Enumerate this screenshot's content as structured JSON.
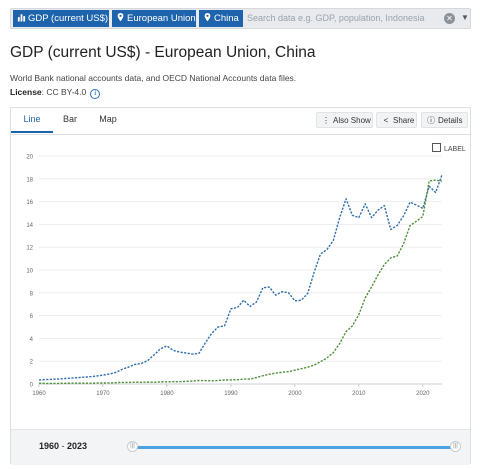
{
  "search": {
    "chips": [
      "GDP (current US$)",
      "European Union",
      "China"
    ],
    "placeholder": "Search data e.g. GDP, population, Indonesia"
  },
  "page": {
    "title": "GDP (current US$) - European Union, China",
    "source": "World Bank national accounts data, and OECD National Accounts data files.",
    "license_label": "License",
    "license_value": ": CC BY-4.0"
  },
  "tabs": [
    "Line",
    "Bar",
    "Map"
  ],
  "toolbar": {
    "also_show": "Also Show",
    "share": "Share",
    "details": "Details"
  },
  "label_toggle": "LABEL",
  "range": {
    "start": "1960",
    "end": "2023",
    "sep": " - "
  },
  "colors": {
    "eu": "#2f6ea8",
    "china": "#4e8f3a",
    "accent": "#1d64ad"
  },
  "chart_data": {
    "type": "line",
    "x": [
      1960,
      1961,
      1962,
      1963,
      1964,
      1965,
      1966,
      1967,
      1968,
      1969,
      1970,
      1971,
      1972,
      1973,
      1974,
      1975,
      1976,
      1977,
      1978,
      1979,
      1980,
      1981,
      1982,
      1983,
      1984,
      1985,
      1986,
      1987,
      1988,
      1989,
      1990,
      1991,
      1992,
      1993,
      1994,
      1995,
      1996,
      1997,
      1998,
      1999,
      2000,
      2001,
      2002,
      2003,
      2004,
      2005,
      2006,
      2007,
      2008,
      2009,
      2010,
      2011,
      2012,
      2013,
      2014,
      2015,
      2016,
      2017,
      2018,
      2019,
      2020,
      2021,
      2022,
      2023
    ],
    "series": [
      {
        "values": [
          0.36,
          0.39,
          0.41,
          0.44,
          0.48,
          0.52,
          0.56,
          0.6,
          0.64,
          0.7,
          0.78,
          0.87,
          1.02,
          1.3,
          1.48,
          1.72,
          1.8,
          2.05,
          2.55,
          3.1,
          3.33,
          2.95,
          2.8,
          2.72,
          2.62,
          2.68,
          3.6,
          4.45,
          5.0,
          5.1,
          6.6,
          6.7,
          7.35,
          6.8,
          7.2,
          8.45,
          8.5,
          7.8,
          8.1,
          8.0,
          7.3,
          7.35,
          7.95,
          9.8,
          11.4,
          11.8,
          12.6,
          14.6,
          16.25,
          14.8,
          14.6,
          15.8,
          14.6,
          15.25,
          15.65,
          13.55,
          13.9,
          14.75,
          15.95,
          15.7,
          15.4,
          17.35,
          16.8,
          18.35
        ]
      },
      {
        "values": [
          0.06,
          0.05,
          0.05,
          0.05,
          0.06,
          0.07,
          0.08,
          0.07,
          0.07,
          0.08,
          0.09,
          0.1,
          0.11,
          0.14,
          0.14,
          0.16,
          0.15,
          0.17,
          0.15,
          0.18,
          0.19,
          0.2,
          0.2,
          0.23,
          0.26,
          0.31,
          0.3,
          0.27,
          0.31,
          0.35,
          0.36,
          0.38,
          0.43,
          0.44,
          0.56,
          0.73,
          0.86,
          0.96,
          1.03,
          1.09,
          1.21,
          1.34,
          1.47,
          1.66,
          1.96,
          2.29,
          2.75,
          3.55,
          4.59,
          5.1,
          6.09,
          7.55,
          8.53,
          9.57,
          10.48,
          11.06,
          11.23,
          12.31,
          13.89,
          14.28,
          14.69,
          17.82,
          17.88,
          17.79
        ]
      }
    ],
    "xticks": [
      1960,
      1970,
      1980,
      1990,
      2000,
      2010,
      2020
    ],
    "yticks": [
      0,
      2,
      4,
      6,
      8,
      10,
      12,
      14,
      16,
      18,
      20
    ],
    "xlim": [
      1960,
      2023
    ],
    "ylim": [
      0,
      20
    ],
    "grid": "horizontal"
  }
}
